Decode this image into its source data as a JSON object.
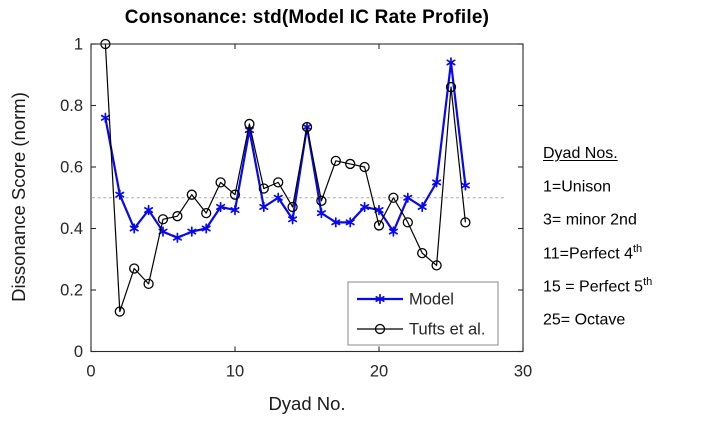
{
  "title": "Consonance: std(Model IC Rate Profile)",
  "chart_data": {
    "type": "line",
    "title": "Consonance: std(Model IC Rate Profile)",
    "xlabel": "Dyad No.",
    "ylabel": "Dissonance Score (norm)",
    "xlim": [
      0,
      30
    ],
    "ylim": [
      0,
      1
    ],
    "x_ticks": [
      0,
      10,
      20,
      30
    ],
    "y_ticks": [
      0,
      0.2,
      0.4,
      0.6,
      0.8,
      1
    ],
    "grid": false,
    "ref_line_y": 0.5,
    "legend_position": "inside-lower-right",
    "x": [
      1,
      2,
      3,
      4,
      5,
      6,
      7,
      8,
      9,
      10,
      11,
      12,
      13,
      14,
      15,
      16,
      17,
      18,
      19,
      20,
      21,
      22,
      23,
      24,
      25,
      26
    ],
    "series": [
      {
        "name": "Model",
        "color": "#0808EE",
        "marker": "asterisk",
        "line_width": 2.2,
        "values": [
          0.76,
          0.51,
          0.4,
          0.46,
          0.39,
          0.37,
          0.39,
          0.4,
          0.47,
          0.46,
          0.72,
          0.47,
          0.5,
          0.43,
          0.73,
          0.45,
          0.42,
          0.42,
          0.47,
          0.46,
          0.39,
          0.5,
          0.47,
          0.55,
          0.94,
          0.54
        ]
      },
      {
        "name": "Tufts et al.",
        "color": "#000000",
        "marker": "open-circle",
        "line_width": 1.2,
        "values": [
          1.0,
          0.13,
          0.27,
          0.22,
          0.43,
          0.44,
          0.51,
          0.45,
          0.55,
          0.51,
          0.74,
          0.53,
          0.55,
          0.47,
          0.73,
          0.49,
          0.62,
          0.61,
          0.6,
          0.41,
          0.5,
          0.42,
          0.32,
          0.28,
          0.86,
          0.42
        ]
      }
    ]
  },
  "annotation": {
    "heading": "Dyad Nos.",
    "lines": [
      {
        "text": "1=Unison",
        "sup": ""
      },
      {
        "text": "3= minor 2nd",
        "sup": ""
      },
      {
        "text": "11=Perfect 4",
        "sup": "th"
      },
      {
        "text": "15 = Perfect 5",
        "sup": "th"
      },
      {
        "text": "25= Octave",
        "sup": ""
      }
    ]
  },
  "colors": {
    "model_blue": "#0808EE",
    "tufts_black": "#000000",
    "ref_line_gray": "#ababab",
    "axis_color": "#2b2b2b"
  }
}
